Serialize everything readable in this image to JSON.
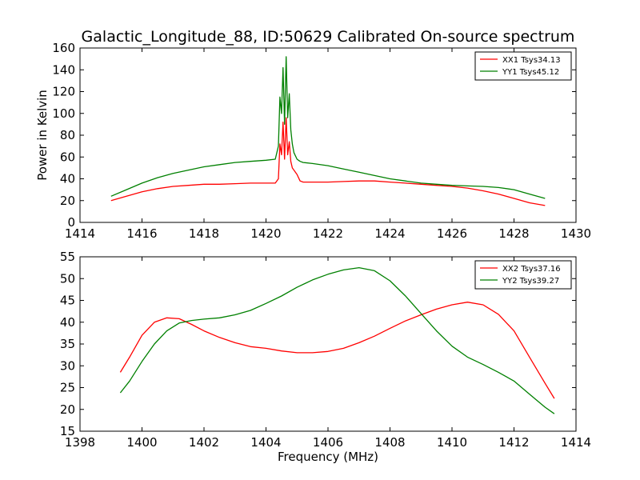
{
  "chart_data": [
    {
      "type": "line",
      "title": "Galactic_Longitude_88, ID:50629 Calibrated On-source spectrum",
      "xlabel": "",
      "ylabel": "Power in Kelvin",
      "xlim": [
        1414,
        1430
      ],
      "ylim": [
        0,
        160
      ],
      "xticks": [
        1414,
        1416,
        1418,
        1420,
        1422,
        1424,
        1426,
        1428,
        1430
      ],
      "yticks": [
        0,
        20,
        40,
        60,
        80,
        100,
        120,
        140,
        160
      ],
      "legend_position": "top-right",
      "grid": false,
      "series": [
        {
          "name": "XX1 Tsys34.13",
          "color": "#ff0000",
          "x": [
            1415.0,
            1415.5,
            1416.0,
            1416.5,
            1417.0,
            1417.5,
            1418.0,
            1418.5,
            1419.0,
            1419.5,
            1420.0,
            1420.3,
            1420.4,
            1420.45,
            1420.5,
            1420.55,
            1420.6,
            1420.65,
            1420.7,
            1420.75,
            1420.8,
            1420.85,
            1420.9,
            1421.0,
            1421.1,
            1421.2,
            1421.5,
            1422.0,
            1422.5,
            1423.0,
            1423.5,
            1424.0,
            1424.5,
            1425.0,
            1425.5,
            1426.0,
            1426.5,
            1427.0,
            1427.5,
            1428.0,
            1428.5,
            1429.0
          ],
          "y": [
            20,
            24,
            28,
            31,
            33,
            34,
            35,
            35,
            35.5,
            36,
            36,
            36,
            40,
            72,
            62,
            92,
            58,
            96,
            62,
            74,
            56,
            50,
            48,
            44,
            38,
            37,
            37,
            37,
            37.5,
            38,
            38,
            37,
            36,
            35,
            34,
            33,
            31.5,
            29,
            26,
            22,
            18,
            15.5
          ]
        },
        {
          "name": "YY1 Tsys45.12",
          "color": "#008000",
          "x": [
            1415.0,
            1415.5,
            1416.0,
            1416.5,
            1417.0,
            1417.5,
            1418.0,
            1418.5,
            1419.0,
            1419.5,
            1420.0,
            1420.3,
            1420.4,
            1420.45,
            1420.5,
            1420.55,
            1420.6,
            1420.65,
            1420.7,
            1420.75,
            1420.8,
            1420.85,
            1420.9,
            1421.0,
            1421.1,
            1421.2,
            1421.5,
            1422.0,
            1422.5,
            1423.0,
            1423.5,
            1424.0,
            1424.5,
            1425.0,
            1425.5,
            1426.0,
            1426.5,
            1427.0,
            1427.5,
            1428.0,
            1428.5,
            1429.0
          ],
          "y": [
            24,
            30,
            36,
            41,
            45,
            48,
            51,
            53,
            55,
            56,
            57,
            58,
            70,
            115,
            100,
            142,
            90,
            152,
            96,
            118,
            85,
            72,
            64,
            58,
            56,
            55,
            54,
            52,
            49,
            46,
            43,
            40,
            38,
            36,
            35,
            34,
            33.5,
            33,
            32,
            30,
            26,
            22
          ]
        }
      ]
    },
    {
      "type": "line",
      "title": "",
      "xlabel": "Frequency (MHz)",
      "ylabel": "",
      "xlim": [
        1398,
        1414
      ],
      "ylim": [
        15,
        55
      ],
      "xticks": [
        1398,
        1400,
        1402,
        1404,
        1406,
        1408,
        1410,
        1412,
        1414
      ],
      "yticks": [
        15,
        20,
        25,
        30,
        35,
        40,
        45,
        50,
        55
      ],
      "legend_position": "top-right",
      "grid": false,
      "series": [
        {
          "name": "XX2 Tsys37.16",
          "color": "#ff0000",
          "x": [
            1399.3,
            1399.6,
            1400.0,
            1400.4,
            1400.8,
            1401.2,
            1401.6,
            1402.0,
            1402.5,
            1403.0,
            1403.5,
            1404.0,
            1404.5,
            1405.0,
            1405.5,
            1406.0,
            1406.5,
            1407.0,
            1407.5,
            1408.0,
            1408.5,
            1409.0,
            1409.5,
            1410.0,
            1410.5,
            1411.0,
            1411.5,
            1412.0,
            1412.5,
            1413.0,
            1413.3
          ],
          "y": [
            28.5,
            32,
            37,
            40,
            41,
            40.8,
            39.5,
            38,
            36.5,
            35.3,
            34.4,
            34,
            33.4,
            33,
            33,
            33.3,
            34,
            35.3,
            36.8,
            38.6,
            40.3,
            41.7,
            43,
            44,
            44.6,
            44,
            41.8,
            38,
            32,
            26,
            22.5
          ]
        },
        {
          "name": "YY2 Tsys39.27",
          "color": "#008000",
          "x": [
            1399.3,
            1399.6,
            1400.0,
            1400.4,
            1400.8,
            1401.2,
            1401.6,
            1402.0,
            1402.5,
            1403.0,
            1403.5,
            1404.0,
            1404.5,
            1405.0,
            1405.5,
            1406.0,
            1406.5,
            1407.0,
            1407.5,
            1408.0,
            1408.5,
            1409.0,
            1409.5,
            1410.0,
            1410.5,
            1411.0,
            1411.5,
            1412.0,
            1412.5,
            1413.0,
            1413.3
          ],
          "y": [
            23.8,
            26.5,
            31,
            35,
            38,
            39.8,
            40.4,
            40.7,
            41,
            41.7,
            42.7,
            44.3,
            46,
            48,
            49.7,
            51,
            52,
            52.5,
            51.8,
            49.5,
            46,
            42,
            38,
            34.5,
            32,
            30.3,
            28.5,
            26.5,
            23.5,
            20.5,
            19
          ]
        }
      ]
    }
  ]
}
